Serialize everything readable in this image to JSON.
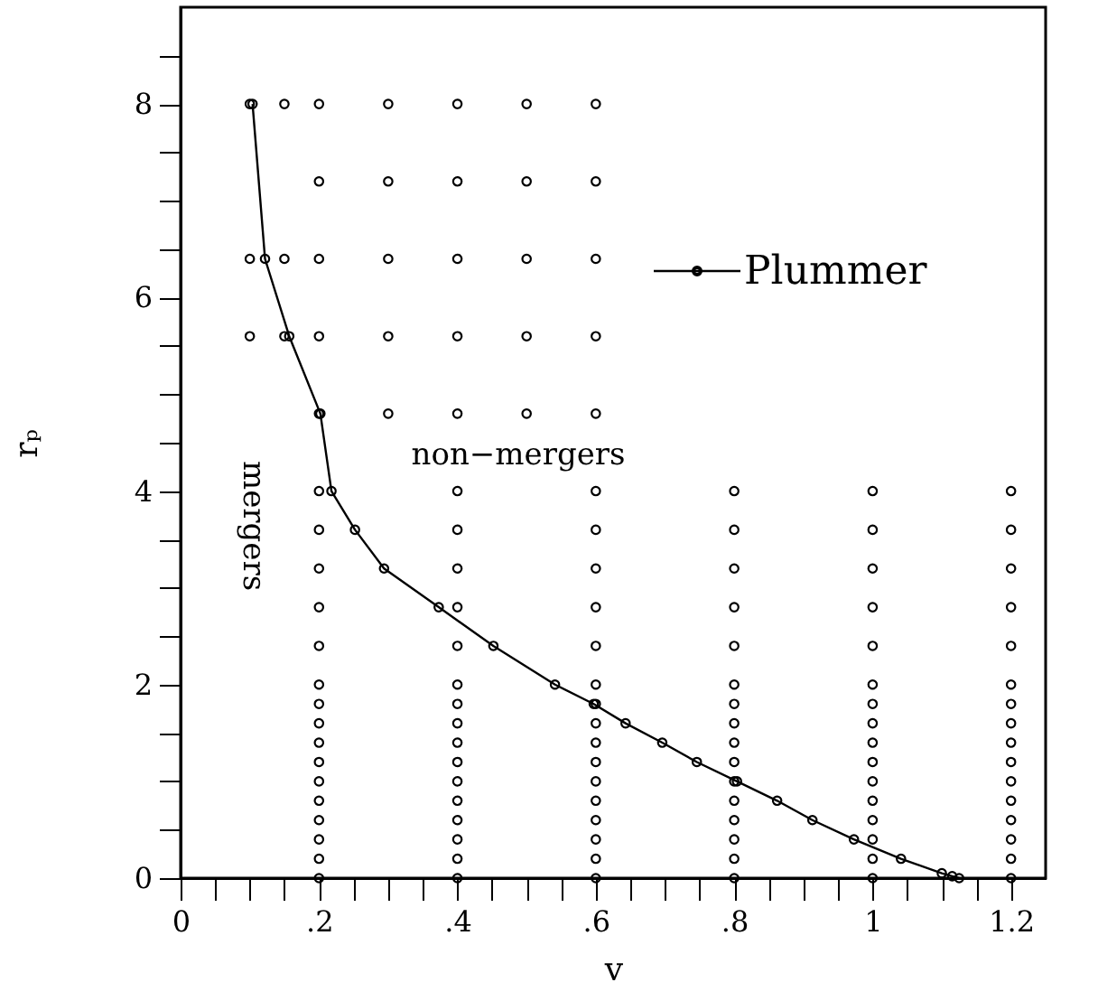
{
  "chart_data": {
    "type": "scatter",
    "xlabel": "v",
    "ylabel": "rₚ",
    "xlim": [
      0,
      1.25
    ],
    "ylim": [
      0,
      9
    ],
    "xticks": [
      0,
      {
        "value": 0.05,
        "label": null
      },
      {
        "value": 0.1,
        "label": null
      },
      {
        "value": 0.15,
        "label": null
      },
      {
        "value": 0.2,
        "label": ".2"
      },
      {
        "value": 0.25,
        "label": null
      },
      {
        "value": 0.3,
        "label": null
      },
      {
        "value": 0.35,
        "label": null
      },
      {
        "value": 0.4,
        "label": ".4"
      },
      {
        "value": 0.45,
        "label": null
      },
      {
        "value": 0.5,
        "label": null
      },
      {
        "value": 0.55,
        "label": null
      },
      {
        "value": 0.6,
        "label": ".6"
      },
      {
        "value": 0.65,
        "label": null
      },
      {
        "value": 0.7,
        "label": null
      },
      {
        "value": 0.75,
        "label": null
      },
      {
        "value": 0.8,
        "label": ".8"
      },
      {
        "value": 0.85,
        "label": null
      },
      {
        "value": 0.9,
        "label": null
      },
      {
        "value": 0.95,
        "label": null
      },
      1,
      {
        "value": 1.05,
        "label": null
      },
      {
        "value": 1.1,
        "label": null
      },
      {
        "value": 1.15,
        "label": null
      },
      1.2
    ],
    "yticks": [
      0,
      {
        "value": 0.5,
        "label": null
      },
      {
        "value": 1,
        "label": null
      },
      {
        "value": 1.5,
        "label": null
      },
      2,
      {
        "value": 2.5,
        "label": null
      },
      {
        "value": 3,
        "label": null
      },
      {
        "value": 3.5,
        "label": null
      },
      4,
      {
        "value": 4.5,
        "label": null
      },
      {
        "value": 5,
        "label": null
      },
      {
        "value": 5.5,
        "label": null
      },
      6,
      {
        "value": 6.5,
        "label": null
      },
      {
        "value": 7,
        "label": null
      },
      {
        "value": 7.5,
        "label": null
      },
      8,
      {
        "value": 8.5,
        "label": null
      }
    ],
    "grid": false,
    "legend": "top right",
    "marker": "circle",
    "annotations": [
      "non−mergers",
      "mergers"
    ],
    "series": [
      {
        "color": "#000000",
        "x": [
          0.2,
          0.2,
          0.2,
          0.2,
          0.2,
          0.2,
          0.2,
          0.2,
          0.2,
          0.2,
          0.2,
          0.2,
          0.2,
          0.2,
          0.2,
          0.2,
          0.4,
          0.4,
          0.4,
          0.4,
          0.4,
          0.4,
          0.4,
          0.4,
          0.4,
          0.4,
          0.4,
          0.4,
          0.4,
          0.4,
          0.4,
          0.4,
          0.6,
          0.6,
          0.6,
          0.6,
          0.6,
          0.6,
          0.6,
          0.6,
          0.6,
          0.6,
          0.6,
          0.6,
          0.6,
          0.6,
          0.6,
          0.6,
          0.8,
          0.8,
          0.8,
          0.8,
          0.8,
          0.8,
          0.8,
          0.8,
          0.8,
          0.8,
          0.8,
          0.8,
          0.8,
          0.8,
          0.8,
          0.8,
          1,
          1,
          1,
          1,
          1,
          1,
          1,
          1,
          1,
          1,
          1,
          1,
          1,
          1,
          1,
          1,
          1.2,
          1.2,
          1.2,
          1.2,
          1.2,
          1.2,
          1.2,
          1.2,
          1.2,
          1.2,
          1.2,
          1.2,
          1.2,
          1.2,
          1.2,
          1.2,
          0.2,
          0.3,
          0.4,
          0.5,
          0.6,
          0.2,
          0.3,
          0.4,
          0.5,
          0.6,
          0.2,
          0.3,
          0.4,
          0.5,
          0.6,
          0.2,
          0.3,
          0.4,
          0.5,
          0.6,
          0.2,
          0.3,
          0.4,
          0.5,
          0.6,
          0.1,
          0.15,
          0.1,
          0.15,
          0.1,
          0.15
        ],
        "values": [
          0,
          0.2,
          0.4,
          0.6,
          0.8,
          1,
          1.2,
          1.4,
          1.6,
          1.8,
          2,
          2.4,
          2.8,
          3.2,
          3.6,
          4,
          0,
          0.2,
          0.4,
          0.6,
          0.8,
          1,
          1.2,
          1.4,
          1.6,
          1.8,
          2,
          2.4,
          2.8,
          3.2,
          3.6,
          4,
          0,
          0.2,
          0.4,
          0.6,
          0.8,
          1,
          1.2,
          1.4,
          1.6,
          1.8,
          2,
          2.4,
          2.8,
          3.2,
          3.6,
          4,
          0,
          0.2,
          0.4,
          0.6,
          0.8,
          1,
          1.2,
          1.4,
          1.6,
          1.8,
          2,
          2.4,
          2.8,
          3.2,
          3.6,
          4,
          0,
          0.2,
          0.4,
          0.6,
          0.8,
          1,
          1.2,
          1.4,
          1.6,
          1.8,
          2,
          2.4,
          2.8,
          3.2,
          3.6,
          4,
          0,
          0.2,
          0.4,
          0.6,
          0.8,
          1,
          1.2,
          1.4,
          1.6,
          1.8,
          2,
          2.4,
          2.8,
          3.2,
          3.6,
          4,
          4.8,
          4.8,
          4.8,
          4.8,
          4.8,
          5.6,
          5.6,
          5.6,
          5.6,
          5.6,
          6.4,
          6.4,
          6.4,
          6.4,
          6.4,
          7.2,
          7.2,
          7.2,
          7.2,
          7.2,
          8,
          8,
          8,
          8,
          8,
          5.6,
          5.6,
          6.4,
          6.4,
          8,
          8
        ]
      },
      {
        "type": "line",
        "name": "Plummer",
        "color": "#000000",
        "x": [
          0.104,
          0.122,
          0.157,
          0.202,
          0.218,
          0.252,
          0.294,
          0.373,
          0.452,
          0.541,
          0.597,
          0.643,
          0.696,
          0.746,
          0.804,
          0.862,
          0.913,
          0.973,
          1.041,
          1.1,
          1.115,
          1.125
        ],
        "values": [
          8,
          6.4,
          5.6,
          4.8,
          4,
          3.6,
          3.2,
          2.8,
          2.4,
          2,
          1.8,
          1.6,
          1.4,
          1.2,
          1,
          0.8,
          0.6,
          0.4,
          0.2,
          0.05,
          0.02,
          0
        ]
      }
    ]
  }
}
